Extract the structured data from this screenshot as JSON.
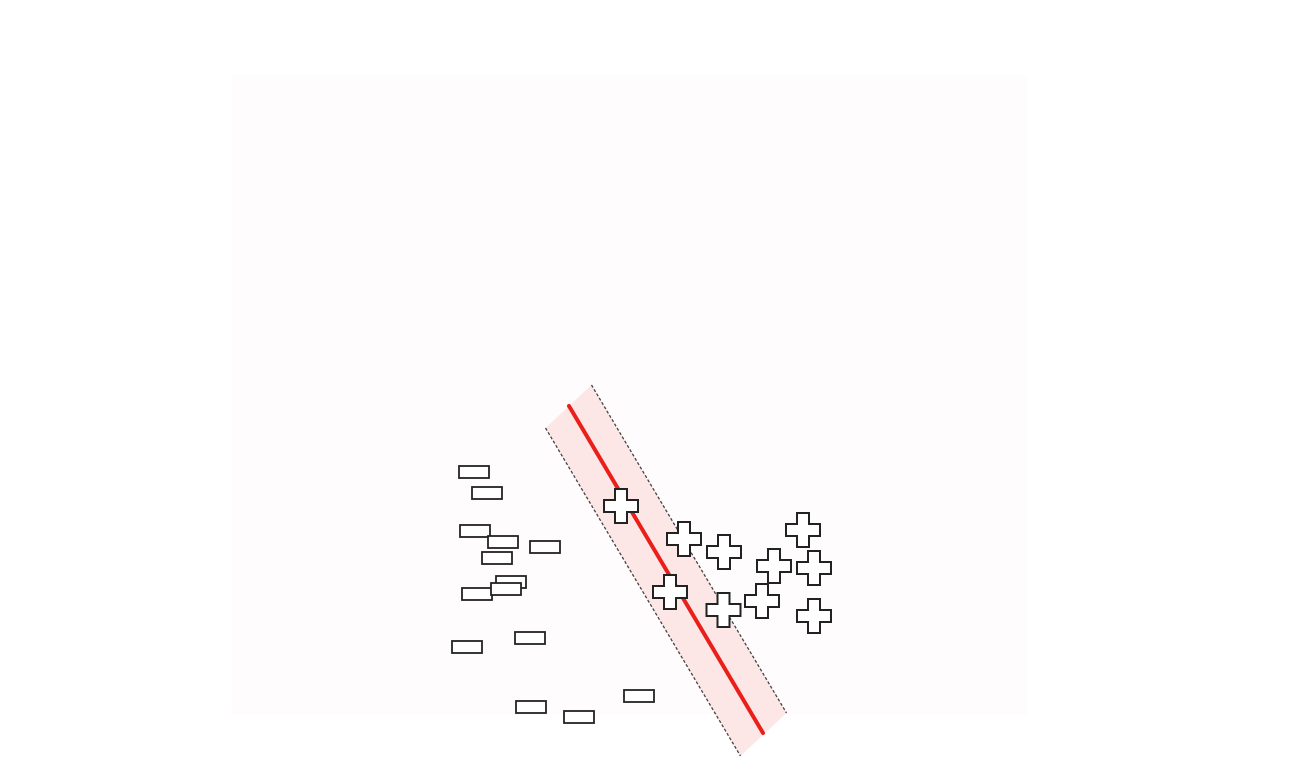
{
  "diagram": {
    "kind": "svm-maximum-margin",
    "colors": {
      "margin_fill": "#fde7e6",
      "hyperplane": "#ea1f1a",
      "margin_boundary": "#444444",
      "marker_stroke": "#222222",
      "marker_fill": "#ffffff"
    },
    "negative_class": {
      "marker": "minus-rectangle",
      "points": [
        {
          "x": -58.4,
          "y": 161.2
        },
        {
          "x": -53.2,
          "y": 152.8
        },
        {
          "x": -58.0,
          "y": 137.6
        },
        {
          "x": -46.8,
          "y": 133.2
        },
        {
          "x": -49.2,
          "y": 126.8
        },
        {
          "x": -30.0,
          "y": 131.2
        },
        {
          "x": -43.6,
          "y": 117.2
        },
        {
          "x": -57.2,
          "y": 112.4
        },
        {
          "x": -45.6,
          "y": 114.4
        },
        {
          "x": -61.2,
          "y": 91.2
        },
        {
          "x": -36.0,
          "y": 94.8
        },
        {
          "x": -35.6,
          "y": 67.2
        },
        {
          "x": -16.4,
          "y": 63.2
        },
        {
          "x": 7.6,
          "y": 71.6
        }
      ]
    },
    "positive_class": {
      "marker": "plus-cross",
      "points": [
        {
          "x": 0.4,
          "y": 147.6
        },
        {
          "x": 25.6,
          "y": 134.4
        },
        {
          "x": 41.6,
          "y": 129.2
        },
        {
          "x": 20.0,
          "y": 113.2
        },
        {
          "x": 61.6,
          "y": 123.6
        },
        {
          "x": 73.2,
          "y": 138.0
        },
        {
          "x": 77.6,
          "y": 122.8
        },
        {
          "x": 56.8,
          "y": 109.6
        },
        {
          "x": 41.4,
          "y": 106.0
        },
        {
          "x": 77.6,
          "y": 103.6
        }
      ]
    },
    "hyperplane_segment": [
      {
        "x": -20.4,
        "y": 187.6
      },
      {
        "x": 57.2,
        "y": 56.8
      }
    ],
    "margin_upper_segment": [
      {
        "x": -11.4,
        "y": 196.0
      },
      {
        "x": 66.6,
        "y": 64.8
      }
    ],
    "margin_lower_segment": [
      {
        "x": -29.8,
        "y": 178.8
      },
      {
        "x": 48.2,
        "y": 47.6
      }
    ]
  }
}
